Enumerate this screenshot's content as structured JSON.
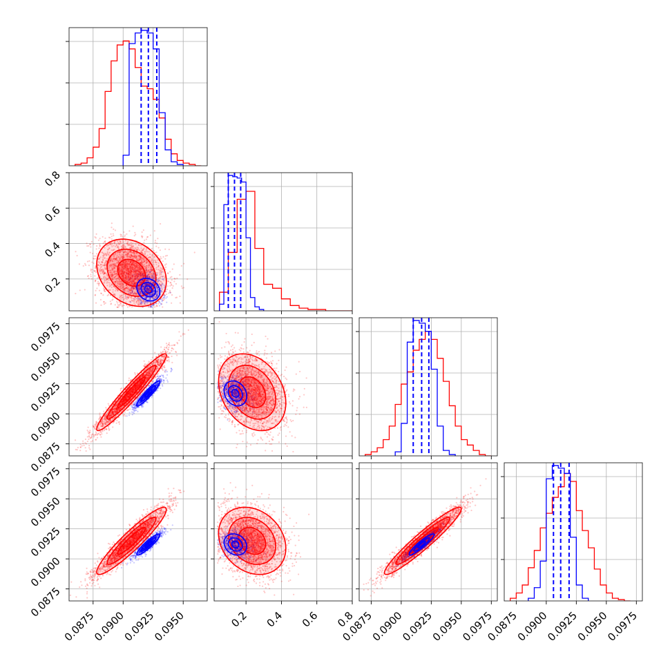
{
  "chart_data": {
    "type": "scatter",
    "title": "",
    "colors": {
      "series_a": "#ff0000",
      "series_b": "#0000ff"
    },
    "grid": true,
    "parameters": [
      {
        "name": "",
        "range": [
          0.0855,
          0.097
        ],
        "ticks": [
          0.0875,
          0.09,
          0.0925,
          0.095
        ],
        "tick_labels": [
          "0.0875",
          "0.0900",
          "0.0925",
          "0.0950"
        ],
        "quantiles_blue": [
          0.0915,
          0.0921,
          0.0928
        ]
      },
      {
        "name": "",
        "range": [
          0.02,
          0.8
        ],
        "ticks": [
          0.2,
          0.4,
          0.6,
          0.8
        ],
        "tick_labels": [
          "0.2",
          "0.4",
          "0.6",
          "0.8"
        ],
        "quantiles_blue": [
          0.1,
          0.135,
          0.17
        ]
      },
      {
        "name": "",
        "range": [
          0.0865,
          0.098
        ],
        "ticks": [
          0.0875,
          0.09,
          0.0925,
          0.095,
          0.0975
        ],
        "tick_labels": [
          "0.0875",
          "0.0900",
          "0.0925",
          "0.0950",
          "0.0975"
        ],
        "quantiles_blue": [
          0.091,
          0.0917,
          0.0923
        ]
      },
      {
        "name": "",
        "range": [
          0.0865,
          0.098
        ],
        "ticks": [
          0.0875,
          0.09,
          0.0925,
          0.095,
          0.0975
        ],
        "tick_labels": [
          "0.0875",
          "0.0900",
          "0.0925",
          "0.0950",
          "0.0975"
        ],
        "quantiles_blue": [
          0.0906,
          0.0912,
          0.0919
        ]
      }
    ],
    "histograms": [
      {
        "param": 0,
        "red": {
          "edges": [
            0.086,
            0.0865,
            0.087,
            0.0875,
            0.088,
            0.0885,
            0.089,
            0.0895,
            0.09,
            0.0905,
            0.091,
            0.0915,
            0.092,
            0.0925,
            0.093,
            0.0935,
            0.094,
            0.0945,
            0.095,
            0.0955,
            0.096,
            0.0965
          ],
          "counts": [
            1,
            2,
            6,
            14,
            28,
            56,
            79,
            91,
            94,
            88,
            74,
            60,
            58,
            50,
            36,
            20,
            9,
            4,
            2,
            1,
            0
          ]
        },
        "blue": {
          "edges": [
            0.09,
            0.0905,
            0.091,
            0.0915,
            0.092,
            0.0925,
            0.093,
            0.0935,
            0.094,
            0.0945,
            0.095
          ],
          "counts": [
            8,
            92,
            100,
            102,
            100,
            88,
            40,
            12,
            3,
            1
          ]
        }
      },
      {
        "param": 1,
        "red": {
          "edges": [
            0.05,
            0.1,
            0.15,
            0.2,
            0.25,
            0.3,
            0.35,
            0.4,
            0.45,
            0.5,
            0.55,
            0.6,
            0.65,
            0.7,
            0.75,
            0.8
          ],
          "counts": [
            14,
            44,
            84,
            90,
            47,
            20,
            17,
            9,
            4,
            2,
            1,
            1,
            0,
            0,
            0
          ]
        },
        "blue": {
          "edges": [
            0.05,
            0.075,
            0.1,
            0.125,
            0.15,
            0.175,
            0.2,
            0.225,
            0.25,
            0.275,
            0.3
          ],
          "counts": [
            5,
            80,
            102,
            101,
            100,
            97,
            55,
            10,
            3,
            1
          ]
        }
      },
      {
        "param": 2,
        "red": {
          "edges": [
            0.087,
            0.0875,
            0.088,
            0.0885,
            0.089,
            0.0895,
            0.09,
            0.0905,
            0.091,
            0.0915,
            0.092,
            0.0925,
            0.093,
            0.0935,
            0.094,
            0.0945,
            0.095,
            0.0955,
            0.096,
            0.0965,
            0.097,
            0.0975
          ],
          "counts": [
            1,
            3,
            6,
            12,
            22,
            38,
            53,
            62,
            78,
            86,
            92,
            86,
            72,
            55,
            37,
            22,
            12,
            8,
            4,
            1,
            0
          ]
        },
        "blue": {
          "edges": [
            0.0895,
            0.09,
            0.0905,
            0.091,
            0.0915,
            0.092,
            0.0925,
            0.093,
            0.0935,
            0.094,
            0.0945
          ],
          "counts": [
            3,
            24,
            84,
            100,
            98,
            92,
            64,
            22,
            4,
            1
          ]
        }
      },
      {
        "param": 3,
        "red": {
          "edges": [
            0.087,
            0.0875,
            0.088,
            0.0885,
            0.089,
            0.0895,
            0.09,
            0.0905,
            0.091,
            0.0915,
            0.092,
            0.0925,
            0.093,
            0.0935,
            0.094,
            0.0945,
            0.095,
            0.0955,
            0.096,
            0.0965,
            0.097
          ],
          "counts": [
            2,
            6,
            12,
            25,
            38,
            55,
            66,
            78,
            86,
            96,
            90,
            68,
            53,
            40,
            24,
            12,
            6,
            2,
            1,
            0
          ]
        },
        "blue": {
          "edges": [
            0.0885,
            0.089,
            0.0895,
            0.09,
            0.0905,
            0.091,
            0.0915,
            0.092,
            0.0925,
            0.093,
            0.0935
          ],
          "counts": [
            2,
            10,
            30,
            92,
            102,
            100,
            96,
            48,
            12,
            2
          ]
        }
      }
    ],
    "samples_2d": {
      "red": {
        "mean": [
          0.0907,
          0.235,
          0.0918,
          0.0915
        ],
        "sd": [
          0.00145,
          0.095,
          0.0016,
          0.0014
        ],
        "corr": [
          [
            1,
            -0.25,
            0.96,
            0.93
          ],
          [
            -0.25,
            1,
            -0.28,
            -0.22
          ],
          [
            0.96,
            -0.28,
            1,
            0.95
          ],
          [
            0.93,
            -0.22,
            0.95,
            1
          ]
        ],
        "count": 2400
      },
      "blue": {
        "mean": [
          0.0921,
          0.14,
          0.0917,
          0.0912
        ],
        "sd": [
          0.0006,
          0.04,
          0.00065,
          0.00055
        ],
        "corr": [
          [
            1,
            -0.2,
            0.93,
            0.91
          ],
          [
            -0.2,
            1,
            -0.22,
            -0.18
          ],
          [
            0.93,
            -0.22,
            1,
            0.92
          ],
          [
            0.91,
            -0.18,
            0.92,
            1
          ]
        ],
        "count": 900
      }
    }
  }
}
